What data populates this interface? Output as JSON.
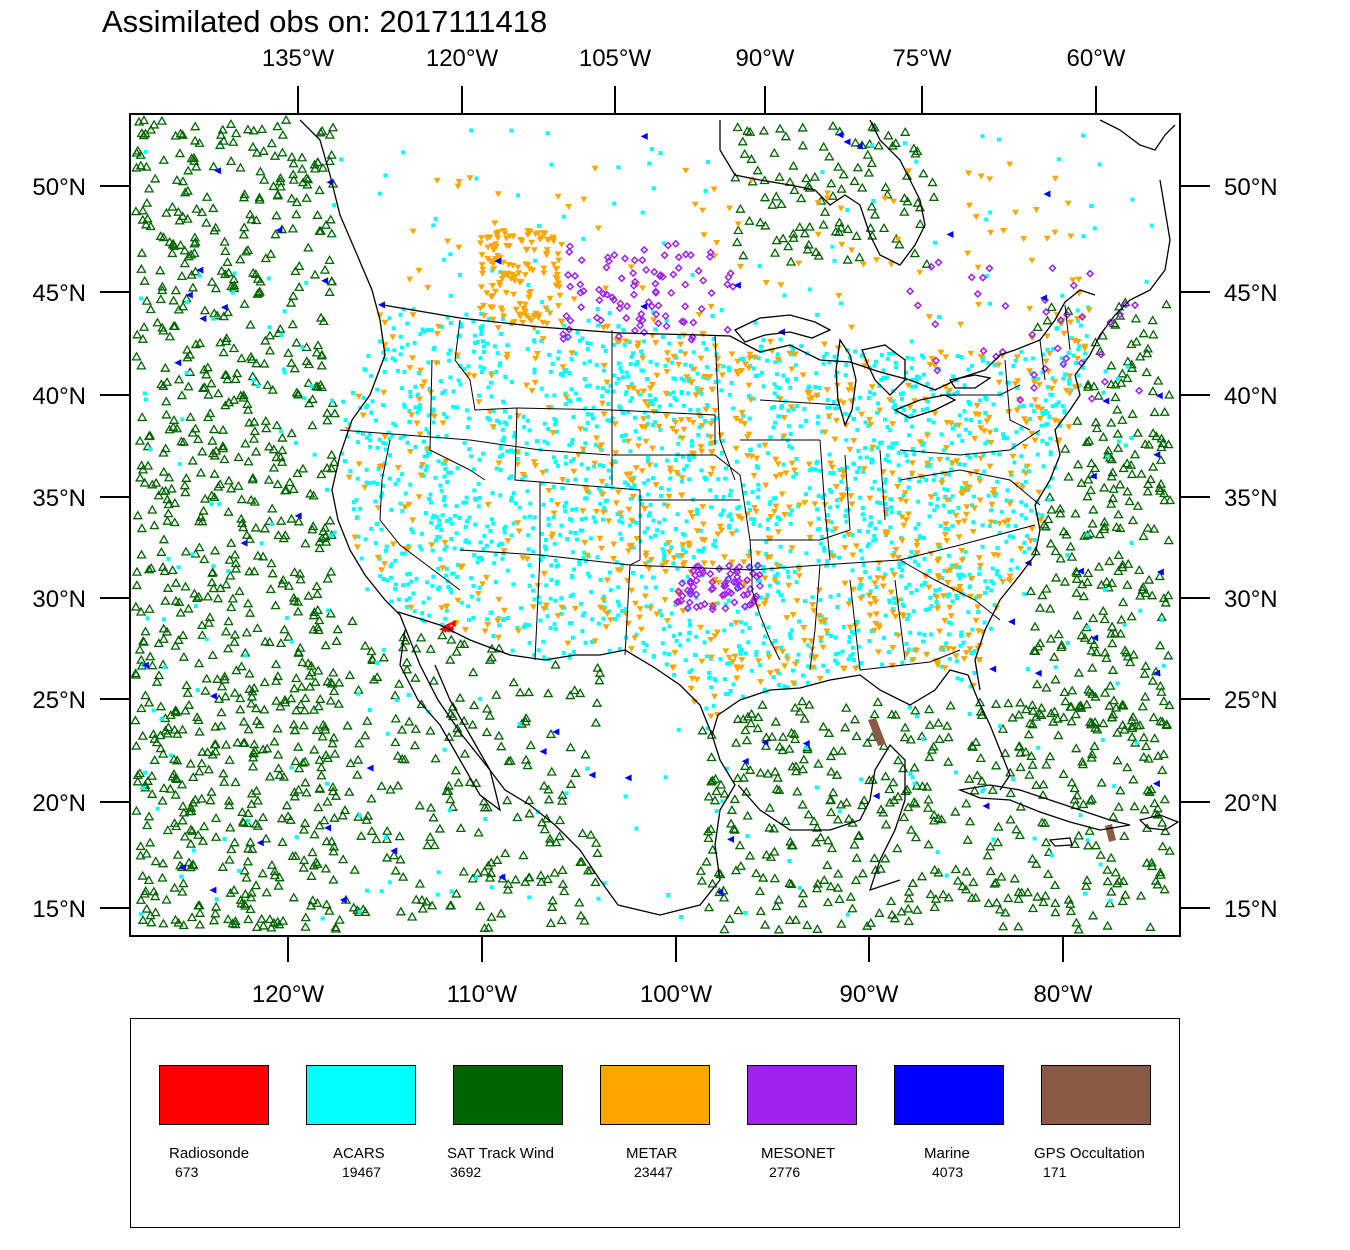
{
  "title": "Assimilated obs on: 2017111418",
  "axes": {
    "top_lon_labels": [
      "135°W",
      "120°W",
      "105°W",
      "90°W",
      "75°W",
      "60°W"
    ],
    "bottom_lon_labels": [
      "120°W",
      "110°W",
      "100°W",
      "90°W",
      "80°W"
    ],
    "lat_labels": [
      "50°N",
      "45°N",
      "40°N",
      "35°N",
      "30°N",
      "25°N",
      "20°N",
      "15°N"
    ]
  },
  "legend": [
    {
      "label": "Radiosonde",
      "count": "673",
      "color": "#ff0000",
      "marker": "triangle-left"
    },
    {
      "label": "ACARS",
      "count": "19467",
      "color": "#00ffff",
      "marker": "square"
    },
    {
      "label": "SAT Track Wind",
      "count": "3692",
      "color": "#006400",
      "marker": "triangle-up-hollow"
    },
    {
      "label": "METAR",
      "count": "23447",
      "color": "#ffa500",
      "marker": "triangle-down"
    },
    {
      "label": "MESONET",
      "count": "2776",
      "color": "#a020f0",
      "marker": "diamond"
    },
    {
      "label": "Marine",
      "count": "4073",
      "color": "#0000ff",
      "marker": "triangle-left"
    },
    {
      "label": "GPS Occultation",
      "count": "171",
      "color": "#8b5a44",
      "marker": "bar"
    }
  ]
}
